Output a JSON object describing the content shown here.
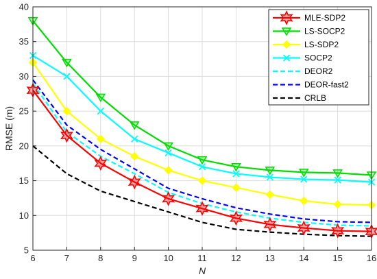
{
  "chart_data": {
    "type": "line",
    "xlabel": "N",
    "ylabel": "RMSE (m)",
    "xlim": [
      6,
      16
    ],
    "ylim": [
      5,
      40
    ],
    "xticks": [
      6,
      7,
      8,
      9,
      10,
      11,
      12,
      13,
      14,
      15,
      16
    ],
    "yticks": [
      5,
      10,
      15,
      20,
      25,
      30,
      35,
      40
    ],
    "grid": true,
    "legend_position": "top-right",
    "x": [
      6,
      7,
      8,
      9,
      10,
      11,
      12,
      13,
      14,
      15,
      16
    ],
    "series": [
      {
        "name": "MLE-SDP2",
        "color": "#ff0000",
        "dash": "solid",
        "marker": "hexagram",
        "values": [
          28.0,
          21.5,
          17.5,
          14.8,
          12.4,
          11.0,
          9.6,
          8.7,
          8.2,
          7.8,
          7.7
        ]
      },
      {
        "name": "LS-SOCP2",
        "color": "#00dd00",
        "dash": "solid",
        "marker": "triangle-down",
        "values": [
          38.0,
          32.0,
          27.0,
          23.0,
          20.0,
          18.0,
          17.0,
          16.5,
          16.2,
          16.1,
          15.8
        ]
      },
      {
        "name": "LS-SDP2",
        "color": "#ffff00",
        "dash": "solid",
        "marker": "diamond",
        "values": [
          32.0,
          25.0,
          21.0,
          18.5,
          16.5,
          15.0,
          14.0,
          13.0,
          12.1,
          11.6,
          11.5
        ]
      },
      {
        "name": "SOCP2",
        "color": "#00ffff",
        "dash": "solid",
        "marker": "x",
        "values": [
          33.0,
          30.0,
          25.0,
          21.0,
          19.0,
          17.0,
          16.0,
          15.5,
          15.2,
          15.1,
          14.8
        ]
      },
      {
        "name": "DEOR2",
        "color": "#00ffff",
        "dash": "dashed",
        "marker": "none",
        "values": [
          29.0,
          22.0,
          18.5,
          16.0,
          13.3,
          11.7,
          10.5,
          9.6,
          9.0,
          8.6,
          8.5
        ]
      },
      {
        "name": "DEOR-fast2",
        "color": "#0000ff",
        "dash": "dashed",
        "marker": "none",
        "values": [
          29.5,
          23.0,
          19.5,
          16.7,
          13.9,
          12.4,
          11.1,
          10.2,
          9.5,
          9.1,
          9.0
        ]
      },
      {
        "name": "CRLB",
        "color": "#000000",
        "dash": "dashed",
        "marker": "none",
        "values": [
          20.0,
          16.0,
          13.5,
          12.0,
          10.5,
          9.0,
          8.0,
          7.6,
          7.3,
          7.1,
          7.0
        ]
      }
    ]
  }
}
